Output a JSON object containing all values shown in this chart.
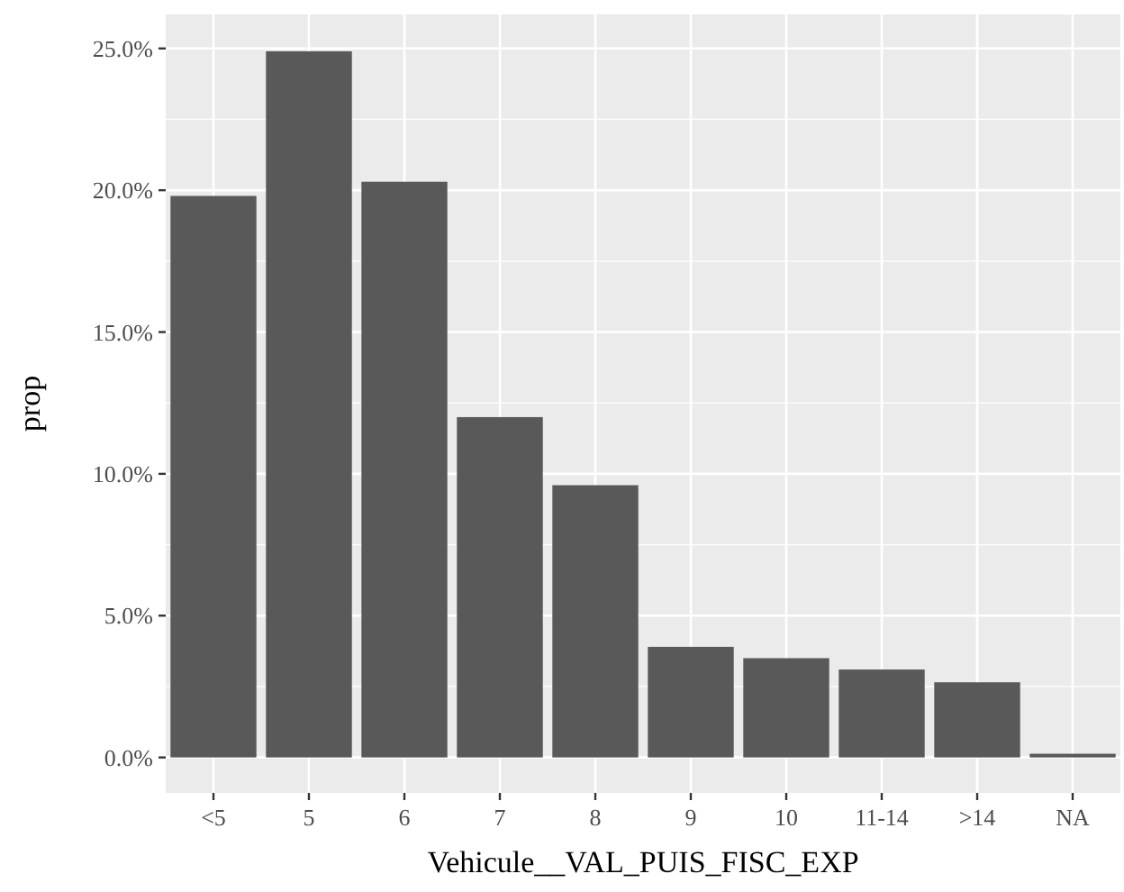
{
  "chart_data": {
    "type": "bar",
    "xlabel": "Vehicule__VAL_PUIS_FISC_EXP",
    "ylabel": "prop",
    "categories": [
      "<5",
      "5",
      "6",
      "7",
      "8",
      "9",
      "10",
      "11-14",
      ">14",
      "NA"
    ],
    "values": [
      19.8,
      24.9,
      20.3,
      12.0,
      9.6,
      3.9,
      3.5,
      3.1,
      2.65,
      0.13
    ],
    "color": "#595959",
    "ylim": [
      -1.25,
      26.2
    ],
    "yticks": [
      {
        "value": 0,
        "label": "0.0%"
      },
      {
        "value": 5,
        "label": "5.0%"
      },
      {
        "value": 10,
        "label": "10.0%"
      },
      {
        "value": 15,
        "label": "15.0%"
      },
      {
        "value": 20,
        "label": "20.0%"
      },
      {
        "value": 25,
        "label": "25.0%"
      }
    ],
    "grid": true
  }
}
